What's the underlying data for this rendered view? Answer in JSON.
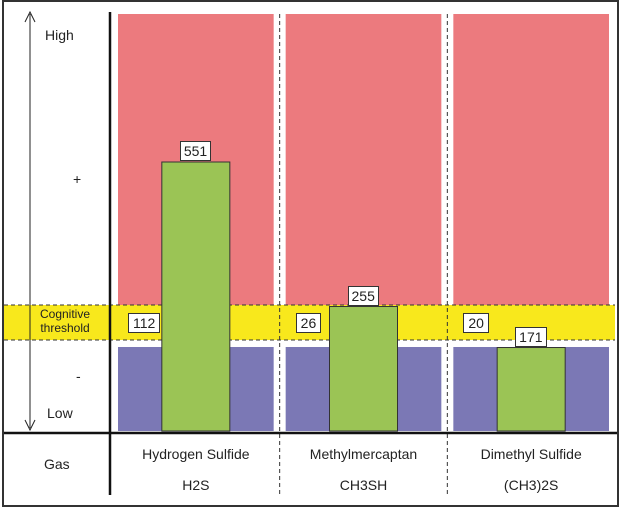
{
  "chart_data": {
    "type": "bar",
    "y_axis_labels": {
      "high": "High",
      "plus": "+",
      "threshold": [
        "Cognitive",
        "threshold"
      ],
      "minus": "-",
      "low": "Low"
    },
    "category_header": "Gas",
    "categories": [
      {
        "name": "Hydrogen Sulfide",
        "formula": "H2S",
        "threshold": 112,
        "value": 551
      },
      {
        "name": "Methylmercaptan",
        "formula": "CH3SH",
        "threshold": 26,
        "value": 255
      },
      {
        "name": "Dimethyl Sulfide",
        "formula": "(CH3)2S",
        "threshold": 20,
        "value": 171
      }
    ],
    "colors": {
      "high_zone": "#ec7a7e",
      "threshold_band": "#f8e81c",
      "low_zone": "#7b78b5",
      "bar": "#9bc455",
      "bar_border": "#333333"
    }
  }
}
